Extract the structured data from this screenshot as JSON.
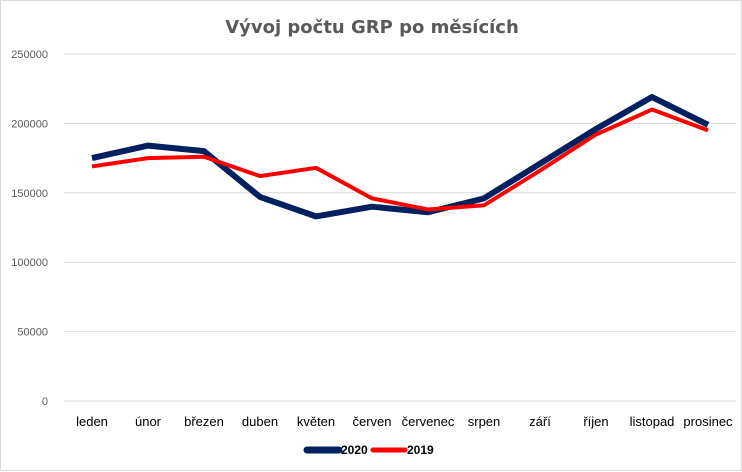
{
  "chart_data": {
    "type": "line",
    "title": "Vývoj počtu GRP po měsících",
    "categories": [
      "leden",
      "únor",
      "březen",
      "duben",
      "květen",
      "červen",
      "červenec",
      "srpen",
      "září",
      "říjen",
      "listopad",
      "prosinec"
    ],
    "series": [
      {
        "name": "2020",
        "color": "#002060",
        "values": [
          175000,
          184000,
          180000,
          147000,
          133000,
          140000,
          136000,
          146000,
          171000,
          196000,
          219000,
          199000
        ]
      },
      {
        "name": "2019",
        "color": "#ff0000",
        "values": [
          169000,
          175000,
          176000,
          162000,
          168000,
          146000,
          138000,
          141000,
          166000,
          192000,
          210000,
          195000
        ]
      }
    ],
    "yticks": [
      "0",
      "50000",
      "100000",
      "150000",
      "200000",
      "250000"
    ],
    "ylim": [
      0,
      250000
    ],
    "grid": true,
    "legend": "bottom"
  }
}
